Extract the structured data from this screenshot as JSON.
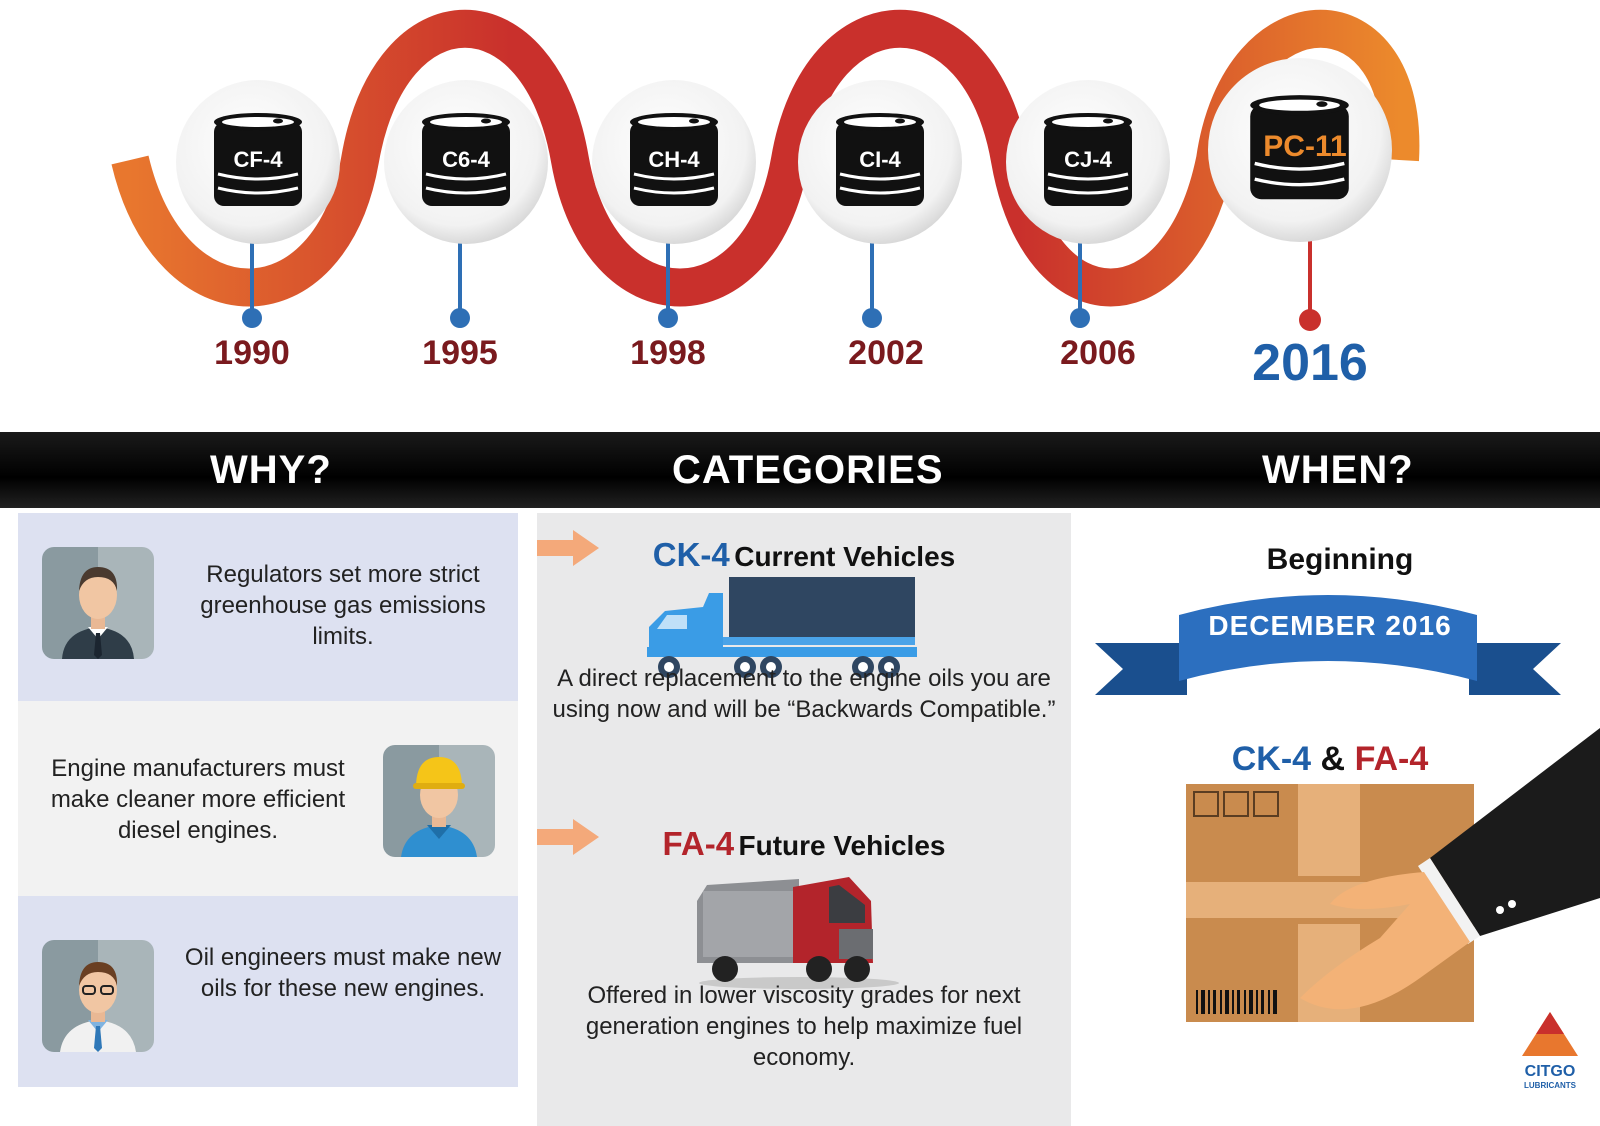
{
  "timeline": [
    {
      "label": "CF-4",
      "year": "1990"
    },
    {
      "label": "C6-4",
      "year": "1995"
    },
    {
      "label": "CH-4",
      "year": "1998"
    },
    {
      "label": "CI-4",
      "year": "2002"
    },
    {
      "label": "CJ-4",
      "year": "2006"
    },
    {
      "label": "PC-11",
      "year": "2016"
    }
  ],
  "headers": {
    "why": "WHY?",
    "categories": "CATEGORIES",
    "when": "WHEN?"
  },
  "why": [
    {
      "text": "Regulators set more strict greenhouse gas emissions limits.",
      "icon": "businessman-icon"
    },
    {
      "text": "Engine manufacturers must make cleaner more efficient diesel engines.",
      "icon": "worker-hardhat-icon"
    },
    {
      "text": "Oil engineers must make new oils for these new engines.",
      "icon": "engineer-labcoat-icon"
    }
  ],
  "categories": [
    {
      "code": "CK-4",
      "title": "Current Vehicles",
      "text": "A direct replacement to the engine oils you are using now and will be “Backwards Compatible.”",
      "color": "#1f5fa8",
      "icon": "semi-truck-icon"
    },
    {
      "code": "FA-4",
      "title": "Future Vehicles",
      "text": "Offered in lower viscosity grades for next generation engines to help maximize fuel economy.",
      "color": "#b3242b",
      "icon": "red-truck-icon"
    }
  ],
  "when": {
    "beginning": "Beginning",
    "date": "DECEMBER 2016",
    "ck": "CK-4",
    "amp": "&",
    "fa": "FA-4"
  },
  "brand": {
    "name": "CITGO",
    "sub": "LUBRICANTS"
  },
  "colors": {
    "red": "#b3242b",
    "blue": "#1f5fa8",
    "orange": "#e8772e",
    "maroon": "#7a1a1e"
  }
}
